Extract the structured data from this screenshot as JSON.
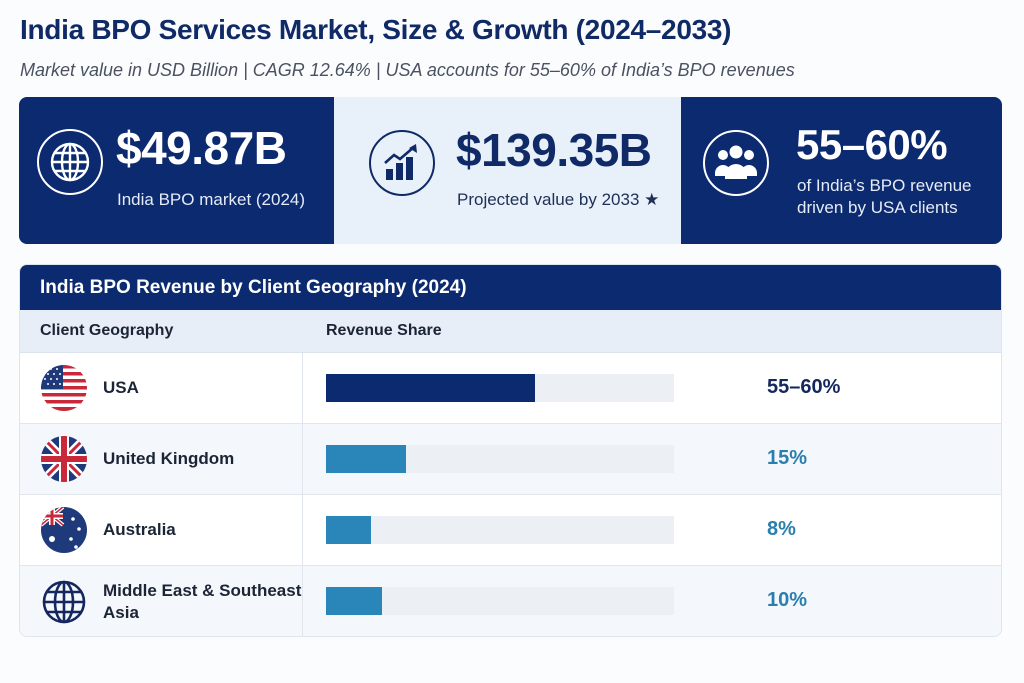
{
  "header": {
    "title": "India BPO Services Market, Size & Growth (2024–2033)",
    "subtitle": "Market value in USD Billion | CAGR 12.64% | USA accounts for 55–60% of India’s BPO revenues"
  },
  "stats": [
    {
      "icon": "globe-icon",
      "value": "$49.87B",
      "label": "India BPO market (2024)"
    },
    {
      "icon": "growth-chart-icon",
      "value": "$139.35B",
      "label": "Projected value by 2033 ★"
    },
    {
      "icon": "people-group-icon",
      "value": "55–60%",
      "label": "of India’s BPO revenue driven by USA clients"
    }
  ],
  "colors": {
    "navy": "#0b2a6f",
    "teal": "#2a85b8",
    "light_panel": "#e8f0fa",
    "track": "#eceff4"
  },
  "chart_data": {
    "type": "bar",
    "orientation": "horizontal",
    "title": "India BPO Revenue by Client Geography (2024)",
    "column_headers": [
      "Client Geography",
      "Revenue Share",
      ""
    ],
    "categories": [
      "USA",
      "United Kingdom",
      "Australia",
      "Middle East & Southeast Asia"
    ],
    "labels": [
      "55–60%",
      "15%",
      "8%",
      "10%"
    ],
    "values": [
      57.5,
      15,
      8,
      10
    ],
    "fill_fraction": [
      0.6,
      0.23,
      0.13,
      0.16
    ],
    "flags": [
      "usa-flag-icon",
      "uk-flag-icon",
      "australia-flag-icon",
      "globe-icon"
    ],
    "bar_colors": [
      "#0b2a6f",
      "#2a85b8",
      "#2a85b8",
      "#2a85b8"
    ],
    "label_colors": [
      "#14275e",
      "#2a7fae",
      "#2a7fae",
      "#2a7fae"
    ],
    "xlabel": "",
    "ylabel": "",
    "grid": false,
    "legend": "none"
  }
}
